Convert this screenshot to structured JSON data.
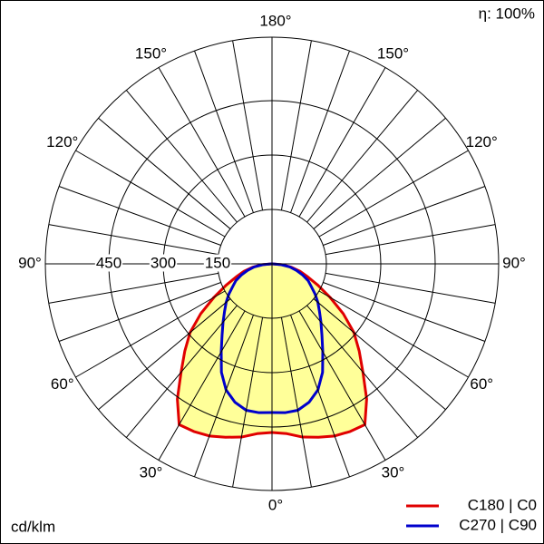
{
  "chart_data": {
    "type": "polar",
    "efficiency": "η: 100%",
    "unit": "cd/klm",
    "rlim": [
      0,
      625
    ],
    "rticks": [
      150,
      300,
      450
    ],
    "angle_gridlines": [
      0,
      10,
      20,
      30,
      40,
      50,
      60,
      70,
      80,
      90,
      100,
      110,
      120,
      130,
      140,
      150,
      160,
      170,
      180
    ],
    "angle_ticks": [
      {
        "value": 0,
        "label": "0°"
      },
      {
        "value": 30,
        "label": "30°"
      },
      {
        "value": 60,
        "label": "60°"
      },
      {
        "value": 90,
        "label": "90°"
      },
      {
        "value": 120,
        "label": "120°"
      },
      {
        "value": 150,
        "label": "150°"
      },
      {
        "value": 180,
        "label": "180°"
      }
    ],
    "angles": [
      0,
      5,
      10,
      15,
      20,
      25,
      30,
      35,
      40,
      45,
      50,
      55,
      60,
      65,
      70,
      75,
      80,
      85,
      90
    ],
    "fill": "#ffff99",
    "series": [
      {
        "name": "C180 | C0",
        "color": "#e00000",
        "values": [
          465,
          470,
          485,
          495,
          505,
          510,
          512,
          455,
          390,
          340,
          295,
          240,
          185,
          140,
          105,
          80,
          55,
          30,
          0
        ]
      },
      {
        "name": "C270 | C90",
        "color": "#0000cc",
        "values": [
          410,
          412,
          410,
          395,
          370,
          330,
          280,
          240,
          210,
          185,
          165,
          145,
          125,
          110,
          90,
          70,
          50,
          25,
          0
        ]
      }
    ]
  }
}
